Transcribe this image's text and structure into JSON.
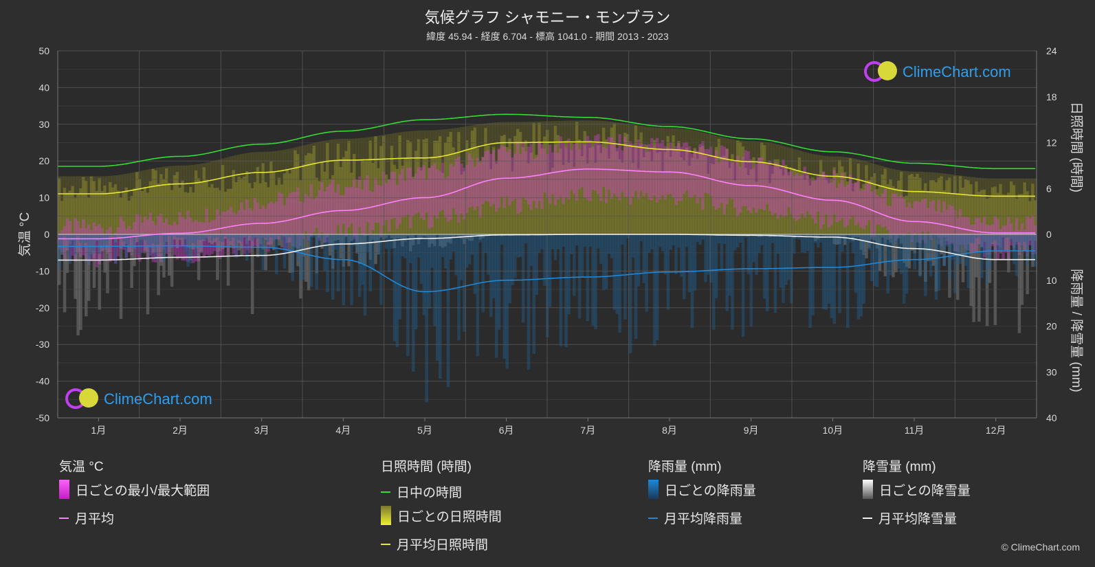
{
  "header": {
    "title": "気候グラフ シャモニー・モンブラン",
    "subtitle": "緯度 45.94 - 経度 6.704 - 標高 1041.0 - 期間 2013 - 2023"
  },
  "watermark": "ClimeChart.com",
  "copyright": "© ClimeChart.com",
  "colors": {
    "background": "#2e2e2e",
    "daylight": "#33dd33",
    "sunshine": "#e8e830",
    "temp_range": "#e040e0",
    "temp_mean": "#ff80ff",
    "rain": "#1f88d8",
    "snow": "#f0f0f0",
    "logo_text": "#2e9ef0"
  },
  "legend": {
    "temperature": {
      "title": "気温 °C",
      "range_label": "日ごとの最小/最大範囲",
      "mean_label": "月平均"
    },
    "sunshine": {
      "title": "日照時間 (時間)",
      "daylight_label": "日中の時間",
      "daily_label": "日ごとの日照時間",
      "mean_label": "月平均日照時間"
    },
    "rain": {
      "title": "降雨量 (mm)",
      "daily_label": "日ごとの降雨量",
      "mean_label": "月平均降雨量"
    },
    "snow": {
      "title": "降雪量 (mm)",
      "daily_label": "日ごとの降雪量",
      "mean_label": "月平均降雪量"
    }
  },
  "chart_data": {
    "type": "line",
    "categories": [
      "1月",
      "2月",
      "3月",
      "4月",
      "5月",
      "6月",
      "7月",
      "8月",
      "9月",
      "10月",
      "11月",
      "12月"
    ],
    "y_left": {
      "label": "気温 °C",
      "range": [
        -50,
        50
      ],
      "ticks": [
        50,
        40,
        30,
        20,
        10,
        0,
        -10,
        -20,
        -30,
        -40,
        -50
      ]
    },
    "y_right_top": {
      "label": "日照時間 (時間)",
      "range": [
        0,
        24
      ],
      "ticks": [
        24,
        18,
        12,
        6,
        0
      ]
    },
    "y_right_bottom": {
      "label": "降雨量 / 降雪量 (mm)",
      "range": [
        0,
        40
      ],
      "ticks": [
        10,
        20,
        30,
        40
      ]
    },
    "grid": true,
    "series": [
      {
        "name": "日中の時間",
        "axis": "sunshine_hours",
        "values": [
          8.9,
          10.2,
          11.8,
          13.5,
          15.0,
          15.7,
          15.3,
          14.1,
          12.5,
          10.8,
          9.3,
          8.6
        ]
      },
      {
        "name": "月平均日照時間",
        "axis": "sunshine_hours",
        "values": [
          5.3,
          6.6,
          8.1,
          9.7,
          10.0,
          12.0,
          12.1,
          11.1,
          9.5,
          7.6,
          5.6,
          5.0
        ]
      },
      {
        "name": "月平均",
        "axis": "temperature_c",
        "values": [
          -1.2,
          0.3,
          3.0,
          6.5,
          10.0,
          15.3,
          17.8,
          17.0,
          13.3,
          9.3,
          3.5,
          0.4
        ]
      },
      {
        "name": "月平均降雨量",
        "axis": "precip_mm",
        "values": [
          2.6,
          2.5,
          2.8,
          5.5,
          12.5,
          10.0,
          9.3,
          8.2,
          7.5,
          7.2,
          5.5,
          3.6
        ]
      },
      {
        "name": "月平均降雪量",
        "axis": "precip_mm",
        "values": [
          5.6,
          5.0,
          4.6,
          2.1,
          0.9,
          0.1,
          0.0,
          0.0,
          0.2,
          0.6,
          3.1,
          5.5
        ]
      }
    ],
    "daily_bands": {
      "temperature_max": [
        2.0,
        4.5,
        9.0,
        13.0,
        17.0,
        22.5,
        25.0,
        24.5,
        20.5,
        15.0,
        8.0,
        3.0
      ],
      "temperature_min": [
        -6.5,
        -5.5,
        -3.0,
        0.5,
        4.0,
        8.0,
        10.5,
        10.0,
        7.0,
        3.5,
        -1.5,
        -5.0
      ],
      "sunshine_hours_max": [
        7.6,
        9.0,
        10.8,
        12.5,
        13.6,
        14.7,
        14.9,
        13.9,
        12.2,
        10.2,
        8.2,
        7.3
      ]
    }
  }
}
